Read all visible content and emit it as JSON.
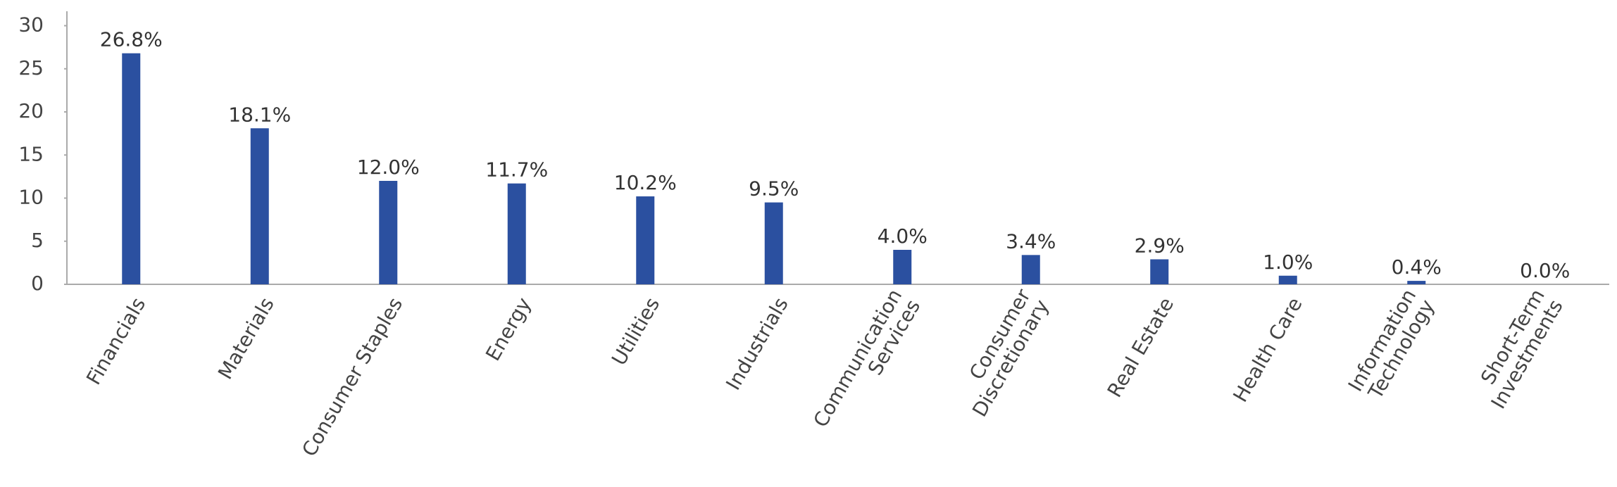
{
  "chart_data": {
    "type": "bar",
    "categories": [
      "Financials",
      "Materials",
      "Consumer Staples",
      "Energy",
      "Utilities",
      "Industrials",
      "Communication Services",
      "Consumer Discretionary",
      "Real Estate",
      "Health Care",
      "Information Technology",
      "Short-Term Investments"
    ],
    "values": [
      26.8,
      18.1,
      12.0,
      11.7,
      10.2,
      9.5,
      4.0,
      3.4,
      2.9,
      1.0,
      0.4,
      0.0
    ],
    "value_labels": [
      "26.8%",
      "18.1%",
      "12.0%",
      "11.7%",
      "10.2%",
      "9.5%",
      "4.0%",
      "3.4%",
      "2.9%",
      "1.0%",
      "0.4%",
      "0.0%"
    ],
    "color": "#2b50a0",
    "ylim": [
      0,
      32
    ],
    "yticks": [
      0,
      5,
      10,
      15,
      20,
      25,
      30
    ],
    "grid": false
  }
}
